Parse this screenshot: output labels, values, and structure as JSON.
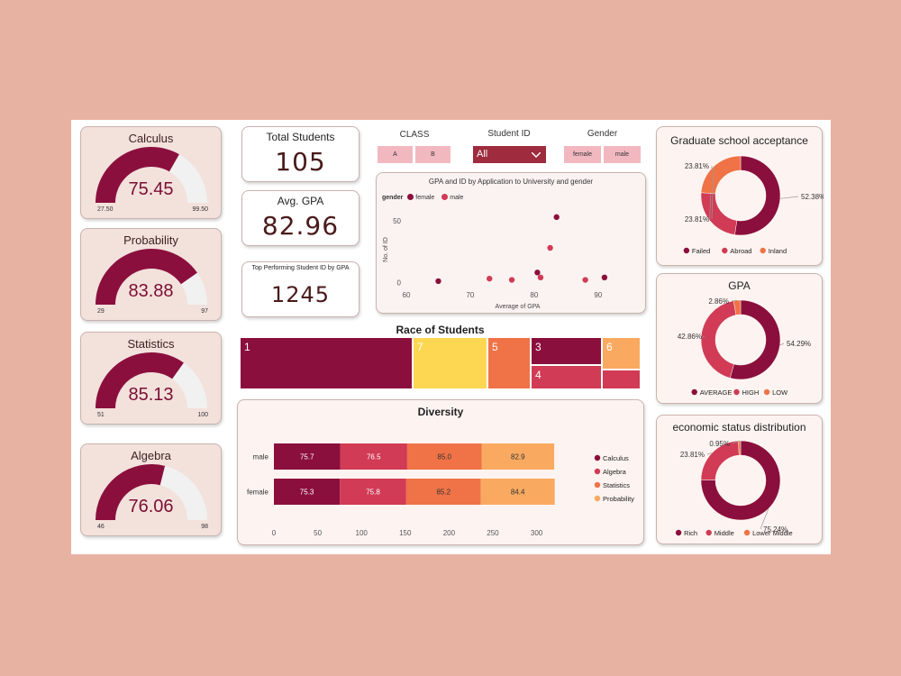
{
  "colors": {
    "c1": "#8b0f3d",
    "c2": "#d13b55",
    "c3": "#ef7347",
    "c4": "#f9aa60",
    "yellow": "#fdd752",
    "gaugeTrack": "#f1f1f1"
  },
  "gauges": [
    {
      "title": "Calculus",
      "value": "75.45",
      "min": "27.50",
      "max": "99.50",
      "v": 75.45,
      "lo": 27.5,
      "hi": 99.5
    },
    {
      "title": "Probability",
      "value": "83.88",
      "min": "29",
      "max": "97",
      "v": 83.88,
      "lo": 29,
      "hi": 97
    },
    {
      "title": "Statistics",
      "value": "85.13",
      "min": "51",
      "max": "100",
      "v": 85.13,
      "lo": 51,
      "hi": 100
    },
    {
      "title": "Algebra",
      "value": "76.06",
      "min": "46",
      "max": "98",
      "v": 76.06,
      "lo": 46,
      "hi": 98
    }
  ],
  "kpis": {
    "total_title": "Total Students",
    "total_value": "105",
    "gpa_title": "Avg. GPA",
    "gpa_value": "82.96",
    "top_title": "Top Performing Student ID by GPA",
    "top_value": "1245"
  },
  "slicers": {
    "class_label": "CLASS",
    "class_a": "A",
    "class_b": "B",
    "id_label": "Student ID",
    "id_value": "All",
    "gender_label": "Gender",
    "gender_female": "female",
    "gender_male": "male"
  },
  "chart_data": [
    {
      "type": "scatter",
      "title": "GPA and ID by Application to University and gender",
      "xlabel": "Average of GPA",
      "ylabel": "No. of ID",
      "legend_title": "gender",
      "xlim": [
        60,
        92
      ],
      "ylim": [
        -2,
        58
      ],
      "x_ticks": [
        "60",
        "70",
        "80",
        "90"
      ],
      "y_ticks": [
        "0",
        "50"
      ],
      "series": [
        {
          "name": "female",
          "points": [
            [
              65,
              1
            ],
            [
              80.5,
              8
            ],
            [
              83.5,
              53
            ],
            [
              91,
              4
            ]
          ]
        },
        {
          "name": "male",
          "points": [
            [
              73,
              3
            ],
            [
              76.5,
              2
            ],
            [
              81,
              4
            ],
            [
              82.5,
              28
            ],
            [
              88,
              2
            ]
          ]
        }
      ]
    },
    {
      "type": "treemap",
      "title": "Race of Students",
      "cells": [
        {
          "label": "1"
        },
        {
          "label": "7"
        },
        {
          "label": "5"
        },
        {
          "label": "3"
        },
        {
          "label": "4"
        },
        {
          "label": "6"
        },
        {
          "label": ""
        }
      ]
    },
    {
      "type": "bar",
      "title": "Diversity",
      "categories": [
        "male",
        "female"
      ],
      "x_ticks": [
        "0",
        "50",
        "100",
        "150",
        "200",
        "250",
        "300"
      ],
      "xlim": [
        0,
        320
      ],
      "series": [
        {
          "name": "Calculus",
          "values": [
            75.7,
            75.3
          ],
          "labels": [
            "75.7",
            "75.3"
          ]
        },
        {
          "name": "Algebra",
          "values": [
            76.5,
            75.8
          ],
          "labels": [
            "76.5",
            "75.8"
          ]
        },
        {
          "name": "Statistics",
          "values": [
            85.0,
            85.2
          ],
          "labels": [
            "85.0",
            "85.2"
          ]
        },
        {
          "name": "Probability",
          "values": [
            82.9,
            84.4
          ],
          "labels": [
            "82.9",
            "84.4"
          ]
        }
      ]
    },
    {
      "type": "pie",
      "title": "Graduate school acceptance",
      "slices": [
        {
          "name": "Failed",
          "value": 52.38,
          "label": "52.38%"
        },
        {
          "name": "Abroad",
          "value": 23.81,
          "label": "23.81%"
        },
        {
          "name": "Inland",
          "value": 23.81,
          "label": "23.81%"
        }
      ]
    },
    {
      "type": "pie",
      "title": "GPA",
      "slices": [
        {
          "name": "AVERAGE",
          "value": 54.29,
          "label": "54.29%"
        },
        {
          "name": "HIGH",
          "value": 42.86,
          "label": "42.86%"
        },
        {
          "name": "LOW",
          "value": 2.86,
          "label": "2.86%"
        }
      ]
    },
    {
      "type": "pie",
      "title": "economic status distribution",
      "slices": [
        {
          "name": "Rich",
          "value": 75.24,
          "label": "75.24%"
        },
        {
          "name": "Middle",
          "value": 23.81,
          "label": "23.81%"
        },
        {
          "name": "Lower Middle",
          "value": 0.95,
          "label": "0.95%"
        }
      ]
    }
  ]
}
